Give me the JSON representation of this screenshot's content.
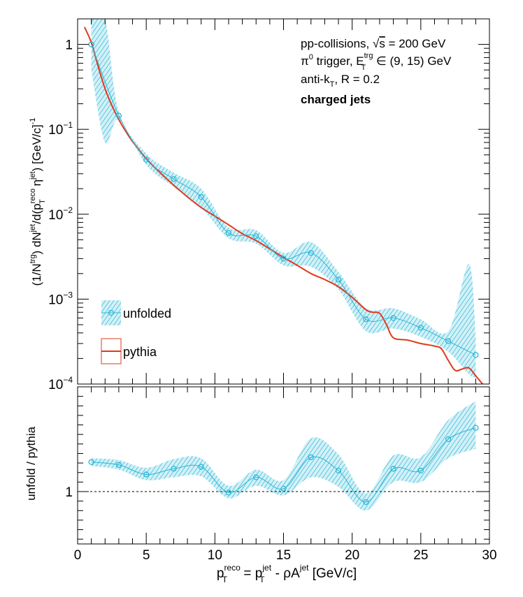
{
  "colors": {
    "unfolded": "#2ab7d6",
    "pythia": "#e03a1e",
    "axis": "#000000",
    "background": "#ffffff"
  },
  "annotations": {
    "line1_prefix": "pp-collisions, ",
    "line1_sqrt": "√",
    "line1_s": "s",
    "line1_suffix": " = 200 GeV",
    "line2_pi": "π",
    "line2_pi_sup": "0",
    "line2_mid": " trigger, E",
    "line2_sup": "trg",
    "line2_sub": "T",
    "line2_suffix": " ∈ (9, 15) GeV",
    "line3_prefix": "anti-k",
    "line3_sub": "T",
    "line3_suffix": ", R = 0.2",
    "line4": "charged jets"
  },
  "labels": {
    "ylabel_top_a": "(1/N",
    "ylabel_top_sup1": "trg",
    "ylabel_top_b": ") dN",
    "ylabel_top_sup2": "jet",
    "ylabel_top_c": "/d(p",
    "ylabel_top_sup3": "reco",
    "ylabel_top_sub3": "T",
    "ylabel_top_d": " η",
    "ylabel_top_sup4": "jet",
    "ylabel_top_e": ") [GeV/c]",
    "ylabel_top_sup5": "-1",
    "ylabel_bottom": "unfold / pythia",
    "xlabel_a": "p",
    "xlabel_sup1": "reco",
    "xlabel_sub1": "T",
    "xlabel_b": " = p",
    "xlabel_sup2": "jet",
    "xlabel_sub2": "T",
    "xlabel_c": " - ρA",
    "xlabel_sup3": "jet",
    "xlabel_d": " [GeV/c]"
  },
  "chart_data": [
    {
      "type": "line",
      "panel": "spectrum",
      "yscale": "log",
      "xlim": [
        0,
        30
      ],
      "ylim": [
        0.0001,
        2
      ],
      "x_ticks": [
        0,
        5,
        10,
        15,
        20,
        25,
        30
      ],
      "y_ticks": [
        {
          "value": 1,
          "label": "1"
        },
        {
          "value": 0.1,
          "label": "10",
          "sup": "−1"
        },
        {
          "value": 0.01,
          "label": "10",
          "sup": "−2"
        },
        {
          "value": 0.001,
          "label": "10",
          "sup": "−3"
        },
        {
          "value": 0.0001,
          "label": "10",
          "sup": "−4"
        }
      ],
      "legend_position": "bottom-left",
      "series": [
        {
          "name": "unfolded",
          "style": "markers with shaded uncertainty band",
          "x": [
            1,
            3,
            5,
            7,
            9,
            11,
            13,
            15,
            17,
            19,
            21,
            23,
            25,
            27,
            29
          ],
          "y": [
            1.0,
            0.145,
            0.044,
            0.026,
            0.016,
            0.006,
            0.0055,
            0.003,
            0.0035,
            0.0017,
            0.00058,
            0.0006,
            0.00046,
            0.00032,
            0.00022
          ],
          "band_x": [
            1,
            2,
            3,
            5,
            7,
            9,
            11,
            13,
            15,
            17,
            19,
            21,
            23,
            25,
            27,
            28.5,
            29
          ],
          "band_low": [
            0.5,
            0.07,
            0.13,
            0.038,
            0.021,
            0.012,
            0.0052,
            0.0045,
            0.0025,
            0.0024,
            0.0013,
            0.00042,
            0.00045,
            0.00036,
            0.00024,
            0.00013,
            0.00012
          ],
          "band_high": [
            2,
            2,
            0.16,
            0.052,
            0.031,
            0.02,
            0.007,
            0.0065,
            0.0035,
            0.0047,
            0.0021,
            0.00078,
            0.00078,
            0.00058,
            0.00042,
            0.0026,
            0.00035
          ]
        },
        {
          "name": "pythia",
          "style": "line",
          "x": [
            0.5,
            1,
            1.5,
            2,
            2.5,
            3,
            3.5,
            4,
            5,
            6,
            7,
            8,
            9,
            10,
            11,
            12,
            13,
            14,
            15,
            16,
            17,
            18,
            19,
            20,
            21,
            21.5,
            22,
            22.5,
            23,
            24,
            25,
            26,
            26.5,
            27,
            27.5,
            28,
            28.5,
            29,
            29.5
          ],
          "y": [
            1.6,
            1.05,
            0.55,
            0.3,
            0.19,
            0.13,
            0.095,
            0.072,
            0.045,
            0.031,
            0.022,
            0.016,
            0.012,
            0.0095,
            0.0075,
            0.0059,
            0.0049,
            0.0039,
            0.0031,
            0.0025,
            0.002,
            0.0017,
            0.0014,
            0.00105,
            0.00075,
            0.0007,
            0.00068,
            0.0005,
            0.00035,
            0.00033,
            0.0003,
            0.00028,
            0.00026,
            0.00019,
            0.000145,
            0.00015,
            0.000155,
            0.000125,
            0.0001
          ]
        }
      ]
    },
    {
      "type": "line",
      "panel": "ratio",
      "xlim": [
        0,
        30
      ],
      "ylim": [
        0.45,
        2.1
      ],
      "y_ticks": [
        {
          "value": 1,
          "label": "1"
        }
      ],
      "reference_line": 1,
      "series": [
        {
          "name": "unfold / pythia",
          "x": [
            1,
            3,
            5,
            7,
            9,
            11,
            13,
            15,
            17,
            19,
            21,
            23,
            25,
            27,
            29
          ],
          "y": [
            1.31,
            1.28,
            1.18,
            1.24,
            1.26,
            0.99,
            1.15,
            1.03,
            1.36,
            1.22,
            0.89,
            1.24,
            1.22,
            1.55,
            1.67
          ],
          "band_low": [
            1.27,
            1.23,
            1.12,
            1.15,
            1.16,
            0.93,
            1.06,
            0.96,
            1.15,
            1.05,
            0.8,
            1.1,
            1.1,
            1.35,
            1.45
          ],
          "band_high": [
            1.35,
            1.33,
            1.25,
            1.34,
            1.35,
            1.06,
            1.23,
            1.12,
            1.56,
            1.39,
            0.98,
            1.38,
            1.36,
            1.75,
            1.95
          ]
        }
      ]
    }
  ]
}
